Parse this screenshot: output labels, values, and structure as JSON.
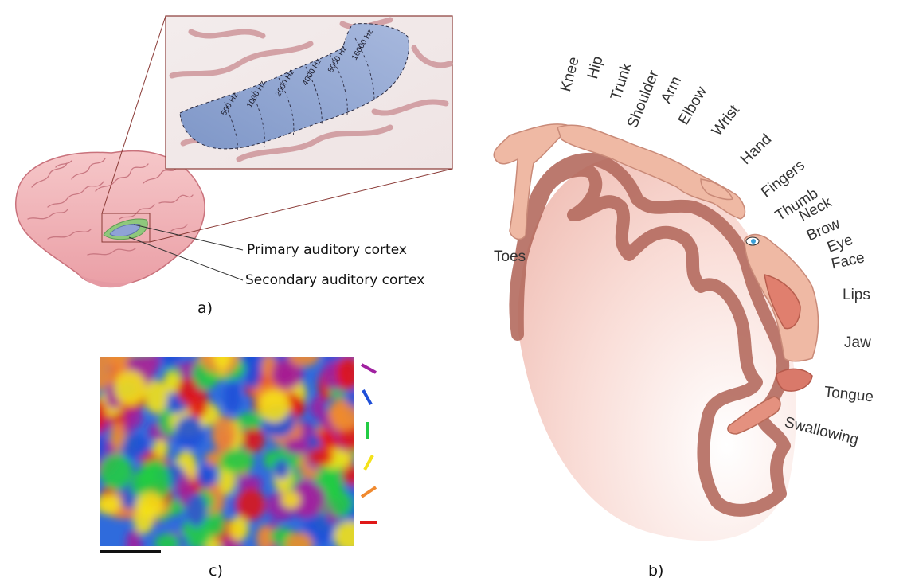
{
  "panel_a": {
    "caption": "a)",
    "primary_label": "Primary auditory cortex",
    "secondary_label": "Secondary auditory cortex",
    "frequencies": [
      "500 Hz",
      "1000 Hz",
      "2000 Hz",
      "4000 Hz",
      "8000 Hz",
      "16000 Hz"
    ]
  },
  "panel_b": {
    "caption": "b)",
    "body_parts": [
      "Toes",
      "Knee",
      "Hip",
      "Trunk",
      "Shoulder",
      "Arm",
      "Elbow",
      "Wrist",
      "Hand",
      "Fingers",
      "Thumb",
      "Neck",
      "Brow",
      "Eye",
      "Face",
      "Lips",
      "Jaw",
      "Tongue",
      "Swallowing"
    ]
  },
  "panel_c": {
    "caption": "c)",
    "legend_colors": [
      "#a020a0",
      "#1f4fd8",
      "#22cc44",
      "#f4e21a",
      "#f08a30",
      "#e01818"
    ]
  }
}
